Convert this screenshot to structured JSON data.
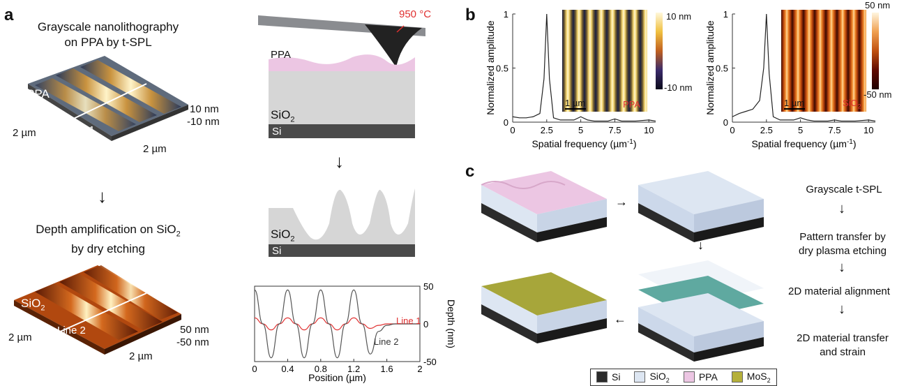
{
  "panel_a": {
    "letter": "a",
    "caption_top_1": "Grayscale nanolithography",
    "caption_top_2": "on PPA by t-SPL",
    "caption_bot_1": "Depth amplification on SiO",
    "caption_bot_1_sub": "2",
    "caption_bot_2": "by dry etching",
    "afm1": {
      "material": "PPA",
      "line": "Line 1",
      "dim_x": "2 µm",
      "dim_y": "2 µm",
      "z_top": "10 nm",
      "z_bot": "-10 nm"
    },
    "afm2": {
      "material": "SiO",
      "material_sub": "2",
      "line": "Line 2",
      "dim_x": "2 µm",
      "dim_y": "2 µm",
      "z_top": "50 nm",
      "z_bot": "-50 nm"
    },
    "schematic": {
      "temp": "950 °C",
      "ppa": "PPA",
      "sio2": "SiO",
      "sio2_sub": "2",
      "si": "Si"
    },
    "schematic2": {
      "sio2": "SiO",
      "sio2_sub": "2",
      "si": "Si"
    }
  },
  "panel_b": {
    "letter": "b",
    "plots": [
      {
        "inset_label": "PPA",
        "scale_bar": "1 µm",
        "cbar_top": "10 nm",
        "cbar_bot": "-10 nm"
      },
      {
        "inset_label": "SiO",
        "inset_label_sub": "2",
        "scale_bar": "1 µm",
        "cbar_top": "50 nm",
        "cbar_bot": "-50 nm"
      }
    ]
  },
  "panel_c": {
    "letter": "c",
    "steps": [
      "Grayscale t-SPL",
      "Pattern transfer by",
      "dry plasma etching",
      "2D material alignment",
      "2D material transfer",
      "and strain"
    ],
    "legend": [
      {
        "label": "Si",
        "color": "#2b2b2b"
      },
      {
        "label": "SiO",
        "sub": "2",
        "color": "#dde6f2"
      },
      {
        "label": "PPA",
        "color": "#ecc6e3"
      },
      {
        "label": "MoS",
        "sub": "2",
        "color": "#b5b03a"
      }
    ]
  },
  "chart_data": [
    {
      "type": "line",
      "xlabel": "Position (µm)",
      "ylabel": "Depth (nm)",
      "xlim": [
        0,
        2
      ],
      "ylim": [
        -50,
        50
      ],
      "xticks": [
        "0",
        "0.4",
        "0.8",
        "1.2",
        "1.6",
        "2"
      ],
      "yticks": [
        "50",
        "0",
        "-50"
      ],
      "series": [
        {
          "name": "Line 1",
          "color": "#e03030",
          "x": [
            0,
            0.1,
            0.2,
            0.3,
            0.4,
            0.5,
            0.6,
            0.7,
            0.8,
            0.9,
            1.0,
            1.1,
            1.2,
            1.3,
            1.4,
            1.5,
            1.6,
            1.7,
            1.8,
            1.9,
            2.0
          ],
          "y": [
            8,
            0,
            -8,
            0,
            8,
            0,
            -8,
            0,
            8,
            0,
            -8,
            0,
            8,
            0,
            -6,
            -2,
            0,
            0,
            0,
            0,
            0
          ]
        },
        {
          "name": "Line 2",
          "color": "#555555",
          "x": [
            0,
            0.1,
            0.2,
            0.3,
            0.4,
            0.5,
            0.6,
            0.7,
            0.8,
            0.9,
            1.0,
            1.1,
            1.2,
            1.3,
            1.4,
            1.5,
            1.6,
            1.7,
            1.8,
            1.9,
            2.0
          ],
          "y": [
            45,
            0,
            -45,
            0,
            45,
            0,
            -45,
            0,
            45,
            0,
            -45,
            0,
            45,
            0,
            -40,
            -10,
            -2,
            0,
            0,
            0,
            0
          ]
        }
      ]
    },
    {
      "type": "line",
      "xlabel": "Spatial frequency (µm",
      "xlabel_sup": "-1",
      "ylabel": "Normalized amplitude",
      "xlim": [
        0,
        10.5
      ],
      "ylim": [
        0,
        1
      ],
      "xticks": [
        "0",
        "2.5",
        "5",
        "7.5",
        "10"
      ],
      "yticks": [
        "1",
        "0.5",
        "0"
      ],
      "series": [
        {
          "name": "PPA",
          "x": [
            0,
            0.5,
            1,
            1.5,
            2,
            2.3,
            2.5,
            2.7,
            3,
            3.5,
            4,
            4.5,
            5,
            5.5,
            6,
            7,
            7.5,
            8,
            9,
            10,
            10.5
          ],
          "y": [
            0.05,
            0.04,
            0.04,
            0.05,
            0.08,
            0.4,
            1.0,
            0.4,
            0.04,
            0.02,
            0.02,
            0.02,
            0.05,
            0.02,
            0.01,
            0.01,
            0.03,
            0.01,
            0.01,
            0.02,
            0.01
          ]
        }
      ]
    },
    {
      "type": "line",
      "xlabel": "Spatial frequency (µm",
      "xlabel_sup": "-1",
      "ylabel": "Normalized amplitude",
      "xlim": [
        0,
        10.5
      ],
      "ylim": [
        0,
        1
      ],
      "xticks": [
        "0",
        "2.5",
        "5",
        "7.5",
        "10"
      ],
      "yticks": [
        "1",
        "0.5",
        "0"
      ],
      "series": [
        {
          "name": "SiO2",
          "x": [
            0,
            0.5,
            1,
            1.5,
            2,
            2.3,
            2.5,
            2.7,
            3,
            3.5,
            4,
            4.5,
            5,
            5.5,
            6,
            7,
            7.5,
            8,
            9,
            10,
            10.5
          ],
          "y": [
            0.05,
            0.08,
            0.1,
            0.12,
            0.2,
            0.5,
            1.0,
            0.45,
            0.05,
            0.02,
            0.02,
            0.02,
            0.04,
            0.02,
            0.01,
            0.01,
            0.02,
            0.01,
            0.01,
            0.02,
            0.01
          ]
        }
      ]
    }
  ]
}
